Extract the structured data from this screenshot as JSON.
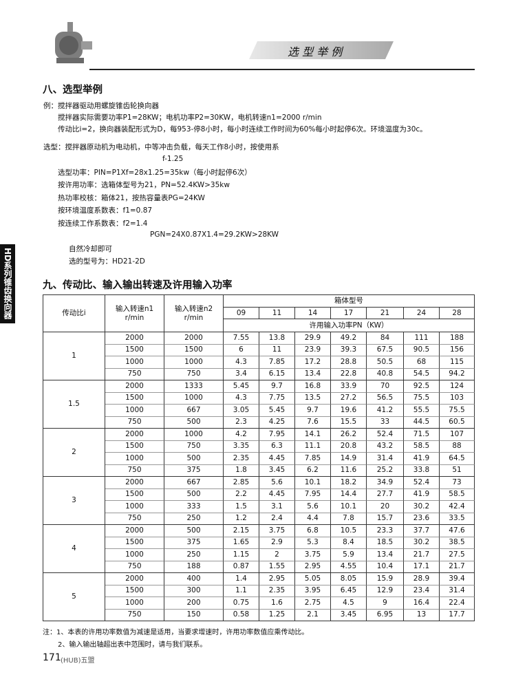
{
  "header": {
    "banner": "选 型 举 例"
  },
  "side_tab": "HD系列锥齿换向器",
  "section8": {
    "title": "八、选型举例",
    "lines": [
      "例：搅拌器驱动用螺旋锥齿轮换向器",
      "搅拌器实际需要功率P1=28KW；电机功率P2=30KW，电机转速n1=2000 r/min",
      "传动比i=2，换向器装配形式为D，每953-停8小时，每小时连续工作时间为60%每小时起停6次。环境温度为30c。",
      "选型：搅拌器原动机为电动机，中等冲击负载，每天工作8小时，按使用系",
      "f-1.25",
      "选型功率：PIN=P1Xf=28x1.25=35kw（每小时起停6次）",
      "按许用功率：选箱体型号为21，PN=52.4KW>35kw",
      "热功率校核：箱体21，按热容量表PG=24KW",
      "按环境温度系数表：f1=0.87",
      "按连续工作系数表：f2=1.4",
      "PGN=24X0.87X1.4=29.2KW>28KW",
      "自然冷却即可",
      "选的型号为：HD21-2D"
    ]
  },
  "section9": {
    "title": "九、传动比、输入输出转速及许用输入功率",
    "table": {
      "header": {
        "ratio": "传动比i",
        "n1": "输入转速n1",
        "n1_unit": "r/min",
        "n2": "输入转速n2",
        "n2_unit": "r/min",
        "box": "箱体型号",
        "sizes": [
          "09",
          "11",
          "14",
          "17",
          "21",
          "24",
          "28"
        ],
        "power": "许用输入功率PN（KW）"
      },
      "groups": [
        {
          "ratio": "1",
          "rows": [
            [
              2000,
              2000,
              7.55,
              13.8,
              29.9,
              49.2,
              84,
              111,
              188
            ],
            [
              1500,
              1500,
              6,
              11,
              23.9,
              39.3,
              67.5,
              90.5,
              156
            ],
            [
              1000,
              1000,
              4.3,
              7.85,
              17.2,
              28.8,
              50.5,
              68,
              115
            ],
            [
              750,
              750,
              3.4,
              6.15,
              13.4,
              22.8,
              40.8,
              54.5,
              94.2
            ]
          ]
        },
        {
          "ratio": "1.5",
          "rows": [
            [
              2000,
              1333,
              5.45,
              9.7,
              16.8,
              33.9,
              70,
              92.5,
              124
            ],
            [
              1500,
              1000,
              4.3,
              7.75,
              13.5,
              27.2,
              56.5,
              75.5,
              103
            ],
            [
              1000,
              667,
              3.05,
              5.45,
              9.7,
              19.6,
              41.2,
              55.5,
              75.5
            ],
            [
              750,
              500,
              2.3,
              4.25,
              7.6,
              15.5,
              33,
              44.5,
              60.5
            ]
          ]
        },
        {
          "ratio": "2",
          "rows": [
            [
              2000,
              1000,
              4.2,
              7.95,
              14.1,
              26.2,
              52.4,
              71.5,
              107
            ],
            [
              1500,
              750,
              3.35,
              6.3,
              11.1,
              20.8,
              43.2,
              58.5,
              88
            ],
            [
              1000,
              500,
              2.35,
              4.45,
              7.85,
              14.9,
              31.4,
              41.9,
              64.5
            ],
            [
              750,
              375,
              1.8,
              3.45,
              6.2,
              11.6,
              25.2,
              33.8,
              51
            ]
          ]
        },
        {
          "ratio": "3",
          "rows": [
            [
              2000,
              667,
              2.85,
              5.6,
              10.1,
              18.2,
              34.9,
              52.4,
              73
            ],
            [
              1500,
              500,
              2.2,
              4.45,
              7.95,
              14.4,
              27.7,
              41.9,
              58.5
            ],
            [
              1000,
              333,
              1.5,
              3.1,
              5.6,
              10.1,
              20,
              30.2,
              42.4
            ],
            [
              750,
              250,
              1.2,
              2.4,
              4.4,
              7.8,
              15.7,
              23.6,
              33.5
            ]
          ]
        },
        {
          "ratio": "4",
          "rows": [
            [
              2000,
              500,
              2.15,
              3.75,
              6.8,
              10.5,
              23.3,
              37.7,
              47.6
            ],
            [
              1500,
              375,
              1.65,
              2.9,
              5.3,
              8.4,
              18.5,
              30.2,
              38.5
            ],
            [
              1000,
              250,
              1.15,
              2,
              3.75,
              5.9,
              13.4,
              21.7,
              27.5
            ],
            [
              750,
              188,
              0.87,
              1.55,
              2.95,
              4.55,
              10.4,
              17.1,
              21.7
            ]
          ]
        },
        {
          "ratio": "5",
          "rows": [
            [
              2000,
              400,
              1.4,
              2.95,
              5.05,
              8.05,
              15.9,
              28.9,
              39.4
            ],
            [
              1500,
              300,
              1.1,
              2.35,
              3.95,
              6.45,
              12.9,
              23.4,
              31.4
            ],
            [
              1000,
              200,
              0.75,
              1.6,
              2.75,
              4.5,
              9,
              16.4,
              22.4
            ],
            [
              750,
              150,
              0.58,
              1.25,
              2.1,
              3.45,
              6.95,
              13,
              17.7
            ]
          ]
        }
      ]
    }
  },
  "notes": [
    "注：1、本表的许用功率数值为减速是适用，当要求增速时，许用功率数值应乘传动比。",
    "2、输入输出轴超出表中范围时，请与我们联系。"
  ],
  "footer": {
    "page": "171",
    "brand": "(HUB)五盟"
  }
}
